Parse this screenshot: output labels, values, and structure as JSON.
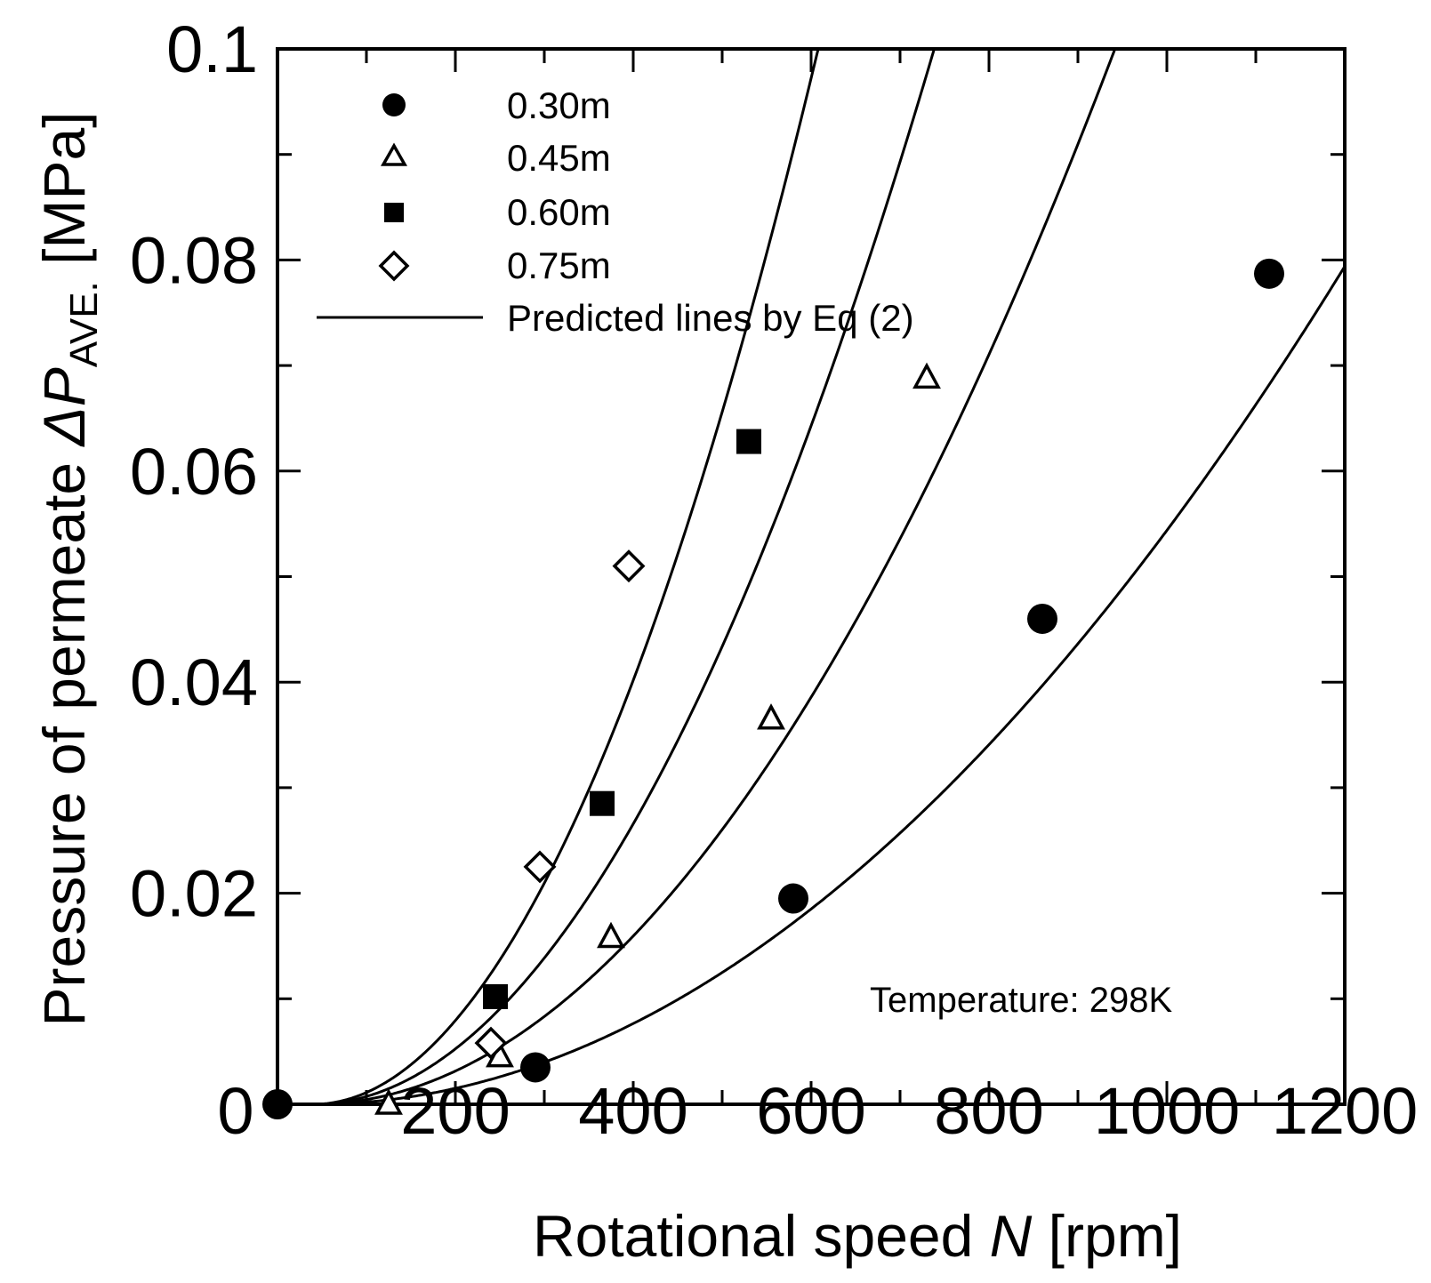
{
  "chart_data": {
    "type": "scatter",
    "xlabel_main": "Rotational speed ",
    "xlabel_var": "N",
    "xlabel_unit": " [rpm]",
    "ylabel_main": "Pressure of permeate ",
    "ylabel_var": "ΔP",
    "ylabel_sub": "AVE.",
    "ylabel_unit": " [MPa]",
    "xlim": [
      0,
      1200
    ],
    "ylim": [
      0,
      0.1
    ],
    "x_ticks": [
      {
        "value": 0,
        "label": "0"
      },
      {
        "value": 200,
        "label": "200"
      },
      {
        "value": 400,
        "label": "400"
      },
      {
        "value": 600,
        "label": "600"
      },
      {
        "value": 800,
        "label": "800"
      },
      {
        "value": 1000,
        "label": "1000"
      },
      {
        "value": 1200,
        "label": "1200"
      }
    ],
    "y_ticks": [
      {
        "value": 0.02,
        "label": "0.02"
      },
      {
        "value": 0.04,
        "label": "0.04"
      },
      {
        "value": 0.06,
        "label": "0.06"
      },
      {
        "value": 0.08,
        "label": "0.08"
      },
      {
        "value": 0.1,
        "label": "0.1"
      }
    ],
    "x_minor_step": 100,
    "y_minor_step": 0.01,
    "series": [
      {
        "name": "0.30m",
        "marker": "circle-filled",
        "points": [
          [
            0,
            0
          ],
          [
            290,
            0.0035
          ],
          [
            580,
            0.0195
          ],
          [
            860,
            0.046
          ],
          [
            1115,
            0.0787
          ]
        ],
        "curve_coef": 5.9e-08
      },
      {
        "name": "0.45m",
        "marker": "triangle-open",
        "points": [
          [
            125,
            0
          ],
          [
            250,
            0.0045
          ],
          [
            375,
            0.0158
          ],
          [
            555,
            0.0365
          ],
          [
            730,
            0.0688
          ]
        ],
        "curve_coef": 1.23e-07
      },
      {
        "name": "0.60m",
        "marker": "square-filled",
        "points": [
          [
            245,
            0.0102
          ],
          [
            365,
            0.0285
          ],
          [
            530,
            0.0628
          ]
        ],
        "curve_coef": 2.05e-07
      },
      {
        "name": "0.75m",
        "marker": "diamond-open",
        "points": [
          [
            240,
            0.0058
          ],
          [
            295,
            0.0225
          ],
          [
            395,
            0.051
          ]
        ],
        "curve_coef": 3.1e-07
      }
    ],
    "curve_offset_x": 40,
    "legend_line_label": "Predicted lines by Eq  (2)",
    "legend_position": "top-left",
    "annotation": "Temperature: 298K"
  }
}
